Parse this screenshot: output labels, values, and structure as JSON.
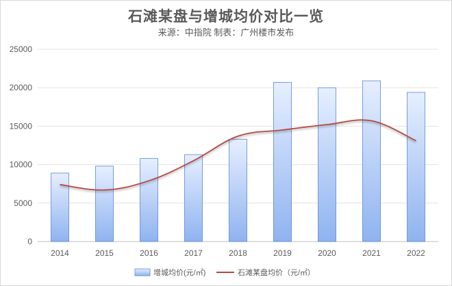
{
  "chart_data": {
    "type": "bar",
    "title": "石滩某盘与增城均价对比一览",
    "subtitle": "来源：中指院 制表：广州楼市发布",
    "categories": [
      "2014",
      "2015",
      "2016",
      "2017",
      "2018",
      "2019",
      "2020",
      "2021",
      "2022"
    ],
    "ylim": [
      0,
      25000
    ],
    "yticks": [
      0,
      5000,
      10000,
      15000,
      20000,
      25000
    ],
    "grid": true,
    "legend_position": "bottom",
    "series": [
      {
        "name": "增城均价(元/㎡)",
        "kind": "bar",
        "values": [
          8900,
          9800,
          10800,
          11300,
          13300,
          20700,
          20000,
          20900,
          19400
        ]
      },
      {
        "name": "石滩某盘均价（元/㎡）",
        "kind": "line",
        "color": "#b5483f",
        "values": [
          7400,
          6700,
          7900,
          10500,
          13700,
          14500,
          15200,
          15700,
          13100
        ]
      }
    ]
  }
}
